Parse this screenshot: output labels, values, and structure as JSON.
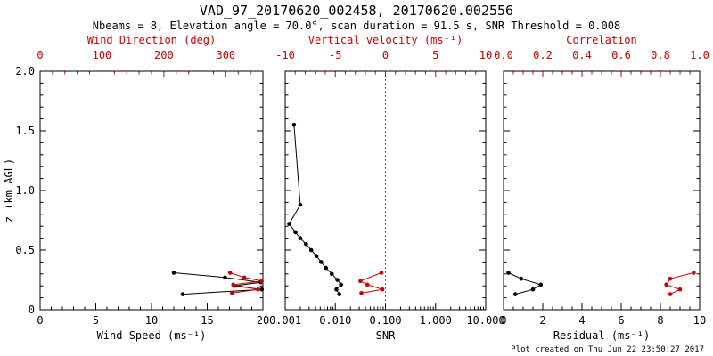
{
  "header": {
    "title": "VAD_97_20170620_002458, 20170620.002556",
    "subtitle": "Nbeams = 8, Elevation angle = 70.0°, scan duration = 91.5 s, SNR Threshold = 0.008"
  },
  "footer": {
    "created": "Plot created on Thu Jun 22 23:50:27 2017"
  },
  "colors": {
    "red": "#cc0000",
    "black": "#000000"
  },
  "yaxis": {
    "label": "z (km AGL)",
    "lim": [
      0,
      2
    ],
    "ticks": [
      0,
      0.5,
      1.0,
      1.5,
      2.0
    ],
    "tick_labels": [
      "0",
      "0.5",
      "1.0",
      "1.5",
      "2.0"
    ],
    "minor_step": 0.1
  },
  "chart_data": [
    {
      "type": "scatter",
      "name": "wind-panel",
      "ylabel": "z (km AGL)",
      "bottom_axis": {
        "label": "Wind Speed (ms⁻¹)",
        "scale": "linear",
        "range": [
          0,
          20
        ],
        "ticks": [
          0,
          5,
          10,
          15,
          20
        ],
        "tick_labels": [
          "0",
          "5",
          "10",
          "15",
          "20"
        ],
        "minor_step": 1
      },
      "top_axis": {
        "label": "Wind Direction (deg)",
        "scale": "linear",
        "range": [
          0,
          360
        ],
        "ticks": [
          0,
          100,
          200,
          300
        ],
        "tick_labels": [
          "0",
          "100",
          "200",
          "300"
        ],
        "minor_step": 20
      },
      "series": [
        {
          "name": "wind-speed",
          "axis": "bottom",
          "color": "black",
          "points": [
            [
              12.8,
              0.13
            ],
            [
              19.9,
              0.17
            ],
            [
              17.4,
              0.2
            ],
            [
              19.8,
              0.23
            ],
            [
              16.6,
              0.27
            ],
            [
              12.0,
              0.31
            ]
          ]
        },
        {
          "name": "wind-direction",
          "axis": "top",
          "color": "red",
          "points": [
            [
              310,
              0.14
            ],
            [
              352,
              0.17
            ],
            [
              312,
              0.21
            ],
            [
              358,
              0.24
            ],
            [
              330,
              0.27
            ],
            [
              307,
              0.31
            ]
          ]
        }
      ]
    },
    {
      "type": "scatter",
      "name": "snr-velocity-panel",
      "bottom_axis": {
        "label": "SNR",
        "scale": "log",
        "range": [
          0.001,
          10
        ],
        "ticks": [
          0.001,
          0.01,
          0.1,
          1,
          10
        ],
        "tick_labels": [
          "0.001",
          "0.010",
          "0.100",
          "1.000",
          "10.000"
        ]
      },
      "top_axis": {
        "label": "Vertical velocity (ms⁻¹)",
        "scale": "linear",
        "range": [
          -10,
          10
        ],
        "ticks": [
          -10,
          -5,
          0,
          5,
          10
        ],
        "tick_labels": [
          "-10",
          "-5",
          "0",
          "5",
          "10"
        ],
        "minor_step": 1
      },
      "vline_top": 0,
      "series": [
        {
          "name": "snr",
          "axis": "bottom",
          "color": "black",
          "points": [
            [
              0.012,
              0.13
            ],
            [
              0.0105,
              0.17
            ],
            [
              0.013,
              0.21
            ],
            [
              0.011,
              0.25
            ],
            [
              0.0085,
              0.3
            ],
            [
              0.0065,
              0.35
            ],
            [
              0.0052,
              0.4
            ],
            [
              0.0042,
              0.45
            ],
            [
              0.0033,
              0.5
            ],
            [
              0.0026,
              0.55
            ],
            [
              0.002,
              0.6
            ],
            [
              0.0016,
              0.65
            ],
            [
              0.0012,
              0.72
            ],
            [
              0.002,
              0.88
            ],
            [
              0.0015,
              1.55
            ]
          ]
        },
        {
          "name": "vertical-velocity",
          "axis": "top",
          "color": "red",
          "points": [
            [
              -2.4,
              0.14
            ],
            [
              -0.3,
              0.17
            ],
            [
              -1.8,
              0.21
            ],
            [
              -2.5,
              0.24
            ],
            [
              -0.4,
              0.31
            ]
          ]
        }
      ]
    },
    {
      "type": "scatter",
      "name": "residual-correlation-panel",
      "bottom_axis": {
        "label": "Residual (ms⁻¹)",
        "scale": "linear",
        "range": [
          0,
          10
        ],
        "ticks": [
          0,
          2,
          4,
          6,
          8,
          10
        ],
        "tick_labels": [
          "0",
          "2",
          "4",
          "6",
          "8",
          "10"
        ],
        "minor_step": 0.5
      },
      "top_axis": {
        "label": "Correlation",
        "scale": "linear",
        "range": [
          0,
          1
        ],
        "ticks": [
          0,
          0.2,
          0.4,
          0.6,
          0.8,
          1.0
        ],
        "tick_labels": [
          "0.0",
          "0.2",
          "0.4",
          "0.6",
          "0.8",
          "1.0"
        ],
        "minor_step": 0.05
      },
      "series": [
        {
          "name": "residual",
          "axis": "bottom",
          "color": "black",
          "points": [
            [
              0.6,
              0.13
            ],
            [
              1.5,
              0.17
            ],
            [
              1.9,
              0.21
            ],
            [
              0.9,
              0.26
            ],
            [
              0.25,
              0.31
            ]
          ]
        },
        {
          "name": "correlation",
          "axis": "top",
          "color": "red",
          "points": [
            [
              0.85,
              0.13
            ],
            [
              0.9,
              0.17
            ],
            [
              0.83,
              0.21
            ],
            [
              0.85,
              0.26
            ],
            [
              0.97,
              0.31
            ]
          ]
        }
      ]
    }
  ]
}
